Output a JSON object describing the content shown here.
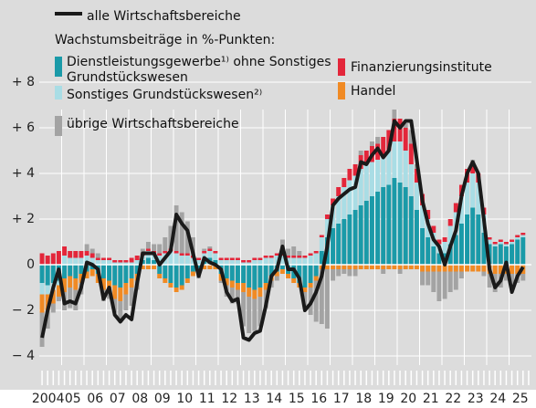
{
  "chart_data": {
    "type": "bar",
    "stacked": true,
    "annotation": "Wachstumsbeiträge in %-Punkten:",
    "categories": [
      "2004",
      null,
      null,
      null,
      "05",
      null,
      null,
      null,
      "06",
      null,
      null,
      null,
      "07",
      null,
      null,
      null,
      "08",
      null,
      null,
      null,
      "09",
      null,
      null,
      null,
      "10",
      null,
      null,
      null,
      "11",
      null,
      null,
      null,
      "12",
      null,
      null,
      null,
      "13",
      null,
      null,
      null,
      "14",
      null,
      null,
      null,
      "15",
      null,
      null,
      null,
      "16",
      null,
      null,
      null,
      "17",
      null,
      null,
      null,
      "18",
      null,
      null,
      null,
      "19",
      null,
      null,
      null,
      "20",
      null,
      null,
      null,
      "21",
      null,
      null,
      null,
      "22",
      null,
      null,
      null,
      "23",
      null,
      null,
      null,
      "24",
      null,
      null,
      null,
      "25",
      null,
      null,
      null
    ],
    "ylim": [
      -4.4,
      11.6
    ],
    "yticks": [
      {
        "value": -4,
        "label": "− 4"
      },
      {
        "value": -2,
        "label": "− 2"
      },
      0,
      {
        "value": 2,
        "label": "+ 2"
      },
      {
        "value": 4,
        "label": "+ 4"
      },
      {
        "value": 6,
        "label": "+ 6"
      },
      {
        "value": 8,
        "label": "+ 8"
      }
    ],
    "grid": true,
    "series": [
      {
        "name": "alle Wirtschaftsbereiche",
        "type": "line",
        "color": "#1a1a1a",
        "values": [
          -3.2,
          -2,
          -1,
          -0.2,
          -1.7,
          -1.6,
          -1.7,
          -1,
          0.1,
          0,
          -0.2,
          -1.5,
          -1,
          -2.2,
          -2.5,
          -2.2,
          -2.4,
          -0.8,
          0.5,
          0.5,
          0.5,
          0,
          0.3,
          0.6,
          2.2,
          1.8,
          1.5,
          0.5,
          -0.5,
          0.3,
          0.1,
          0,
          -0.2,
          -1.2,
          -1.6,
          -1.5,
          -3.2,
          -3.3,
          -3,
          -2.9,
          -1.8,
          -0.5,
          -0.2,
          0.8,
          -0.2,
          -0.2,
          -0.6,
          -2,
          -1.7,
          -1.2,
          -0.5,
          0.8,
          2.6,
          2.9,
          3.1,
          3.3,
          3.4,
          4.5,
          4.4,
          4.8,
          5.1,
          4.7,
          5,
          6.3,
          6,
          6.3,
          6.3,
          4.6,
          2.8,
          1.8,
          1.1,
          0.8,
          0,
          0.8,
          1.5,
          3,
          4,
          4.5,
          4,
          2,
          -0.2,
          -1,
          -0.7,
          0.1,
          -1.2,
          -0.5,
          -0.1,
          null
        ]
      },
      {
        "name": "Dienstleistungsgewerbe¹⁾ ohne Sonstiges Grundstückswesen",
        "color": "#1a9aa8",
        "values": [
          -0.8,
          -0.9,
          -0.8,
          -0.7,
          -0.6,
          -0.5,
          -0.6,
          -0.4,
          -0.3,
          -0.2,
          -0.4,
          -0.6,
          -0.7,
          -0.9,
          -1,
          -0.8,
          -0.6,
          -0.4,
          0.2,
          0.3,
          0.2,
          -0.4,
          -0.6,
          -0.8,
          -1,
          -0.9,
          -0.6,
          -0.3,
          -0.2,
          0.2,
          0.3,
          0.2,
          -0.4,
          -0.6,
          -0.7,
          -0.8,
          -0.8,
          -1,
          -1.1,
          -1,
          -0.8,
          -0.5,
          -0.3,
          -0.2,
          -0.4,
          -0.6,
          -0.8,
          -1,
          -0.8,
          -0.5,
          0.6,
          1.2,
          1.6,
          1.8,
          2,
          2.2,
          2.4,
          2.6,
          2.8,
          3,
          3.2,
          3.4,
          3.5,
          3.8,
          3.6,
          3.4,
          3,
          2.4,
          1.6,
          1.2,
          0.8,
          0.5,
          0.5,
          0.9,
          1.3,
          1.8,
          2.2,
          2.5,
          2.2,
          1.4,
          0.9,
          0.8,
          0.9,
          0.8,
          0.9,
          1.1,
          1.2,
          null
        ]
      },
      {
        "name": "Sonstiges Grundstückswesen²⁾",
        "color": "#a9dde5",
        "values": [
          -0.5,
          -0.4,
          -0.3,
          -0.2,
          0.4,
          0.3,
          0.3,
          0.3,
          0.4,
          0.3,
          0.2,
          0.2,
          0.2,
          0.1,
          0.1,
          0.1,
          0.1,
          0.2,
          0.2,
          0.3,
          0.3,
          0.4,
          0.5,
          0.6,
          0.5,
          0.4,
          0.4,
          0.3,
          0.2,
          0.3,
          0.3,
          0.3,
          0.2,
          0.2,
          0.2,
          0.2,
          0.1,
          0.1,
          0.2,
          0.2,
          0.3,
          0.3,
          0.4,
          0.4,
          0.3,
          0.3,
          0.3,
          0.3,
          0.4,
          0.5,
          0.6,
          0.8,
          1,
          1.2,
          1.4,
          1.5,
          1.5,
          1.6,
          1.6,
          1.5,
          1.4,
          1.4,
          1.5,
          1.6,
          1.8,
          1.6,
          1.4,
          1.2,
          1,
          0.8,
          0.6,
          0.4,
          0.5,
          0.8,
          1,
          1.2,
          1.4,
          1.5,
          1.4,
          0.8,
          0.2,
          0.1,
          0.1,
          0.1,
          0.1,
          0.1,
          0.1,
          null
        ]
      },
      {
        "name": "Finanzierungsinstitute",
        "color": "#e3263a",
        "values": [
          0.5,
          0.4,
          0.5,
          0.6,
          0.4,
          0.3,
          0.3,
          0.3,
          0.2,
          0.2,
          0.1,
          0.1,
          0.1,
          0.1,
          0.1,
          0.1,
          0.2,
          0.2,
          0.1,
          0.1,
          0.1,
          0.1,
          0.1,
          0.1,
          0.1,
          0.1,
          0.1,
          0.1,
          0.1,
          0.1,
          0.1,
          0.1,
          0.1,
          0.1,
          0.1,
          0.1,
          0.1,
          0.1,
          0.1,
          0.1,
          0.1,
          0.1,
          0.1,
          0.1,
          0.1,
          0.1,
          0.1,
          0.1,
          0.1,
          0.1,
          0.1,
          0.2,
          0.3,
          0.4,
          0.4,
          0.5,
          0.5,
          0.6,
          0.6,
          0.7,
          0.7,
          0.8,
          0.9,
          1,
          1,
          1,
          0.9,
          0.6,
          0.5,
          0.4,
          0.3,
          0.2,
          0.2,
          0.3,
          0.4,
          0.5,
          0.6,
          0.5,
          0.4,
          0.3,
          0.1,
          0.1,
          0.1,
          0.1,
          0.1,
          0.1,
          0.1,
          null
        ]
      },
      {
        "name": "Handel",
        "color": "#f08a24",
        "values": [
          -0.8,
          -0.7,
          -0.6,
          -0.5,
          -0.6,
          -0.5,
          -0.5,
          -0.4,
          -0.3,
          -0.3,
          -0.4,
          -0.5,
          -0.5,
          -0.6,
          -0.6,
          -0.5,
          -0.4,
          -0.3,
          -0.2,
          -0.2,
          -0.2,
          -0.2,
          -0.2,
          -0.2,
          -0.2,
          -0.2,
          -0.2,
          -0.2,
          -0.2,
          -0.2,
          -0.2,
          -0.2,
          -0.3,
          -0.3,
          -0.3,
          -0.3,
          -0.4,
          -0.4,
          -0.4,
          -0.4,
          -0.3,
          -0.2,
          -0.2,
          -0.2,
          -0.2,
          -0.2,
          -0.2,
          -0.2,
          -0.2,
          -0.2,
          -0.2,
          -0.2,
          -0.2,
          -0.2,
          -0.2,
          -0.2,
          -0.2,
          -0.2,
          -0.2,
          -0.2,
          -0.2,
          -0.2,
          -0.2,
          -0.2,
          -0.2,
          -0.2,
          -0.2,
          -0.2,
          -0.3,
          -0.3,
          -0.3,
          -0.3,
          -0.3,
          -0.3,
          -0.3,
          -0.3,
          -0.3,
          -0.3,
          -0.3,
          -0.3,
          -0.4,
          -0.4,
          -0.4,
          -0.4,
          -0.4,
          -0.4,
          -0.4,
          null
        ]
      },
      {
        "name": "übrige Wirtschaftsbereiche",
        "color": "#a3a3a3",
        "values": [
          -1.5,
          -0.8,
          -0.4,
          -0.2,
          -0.8,
          -0.9,
          -0.9,
          -0.5,
          0.3,
          0.2,
          0.2,
          -0.5,
          -0.3,
          -0.6,
          -0.8,
          -0.7,
          -0.8,
          -0.4,
          0.2,
          0.3,
          0.3,
          0.4,
          0.6,
          1,
          2,
          1.8,
          1.4,
          0.8,
          -0.2,
          0.1,
          0.1,
          0,
          -0.1,
          -0.5,
          -0.7,
          -0.6,
          -1.5,
          -1.6,
          -1.4,
          -1.3,
          -0.8,
          -0.3,
          -0.2,
          0.6,
          0.3,
          0.4,
          0.2,
          -0.6,
          -1.2,
          -1.8,
          -2.4,
          -2.6,
          -0.5,
          -0.3,
          -0.2,
          -0.3,
          -0.3,
          0.2,
          0,
          0.2,
          0.3,
          -0.2,
          0,
          0.4,
          -0.2,
          0.2,
          0.6,
          0.2,
          -0.6,
          -0.6,
          -0.9,
          -1.3,
          -1.2,
          -0.9,
          -0.8,
          -0.3,
          0,
          0.1,
          0,
          -0.2,
          -0.6,
          -0.8,
          -0.6,
          -0.3,
          -0.7,
          -0.4,
          -0.3,
          null
        ]
      }
    ]
  }
}
